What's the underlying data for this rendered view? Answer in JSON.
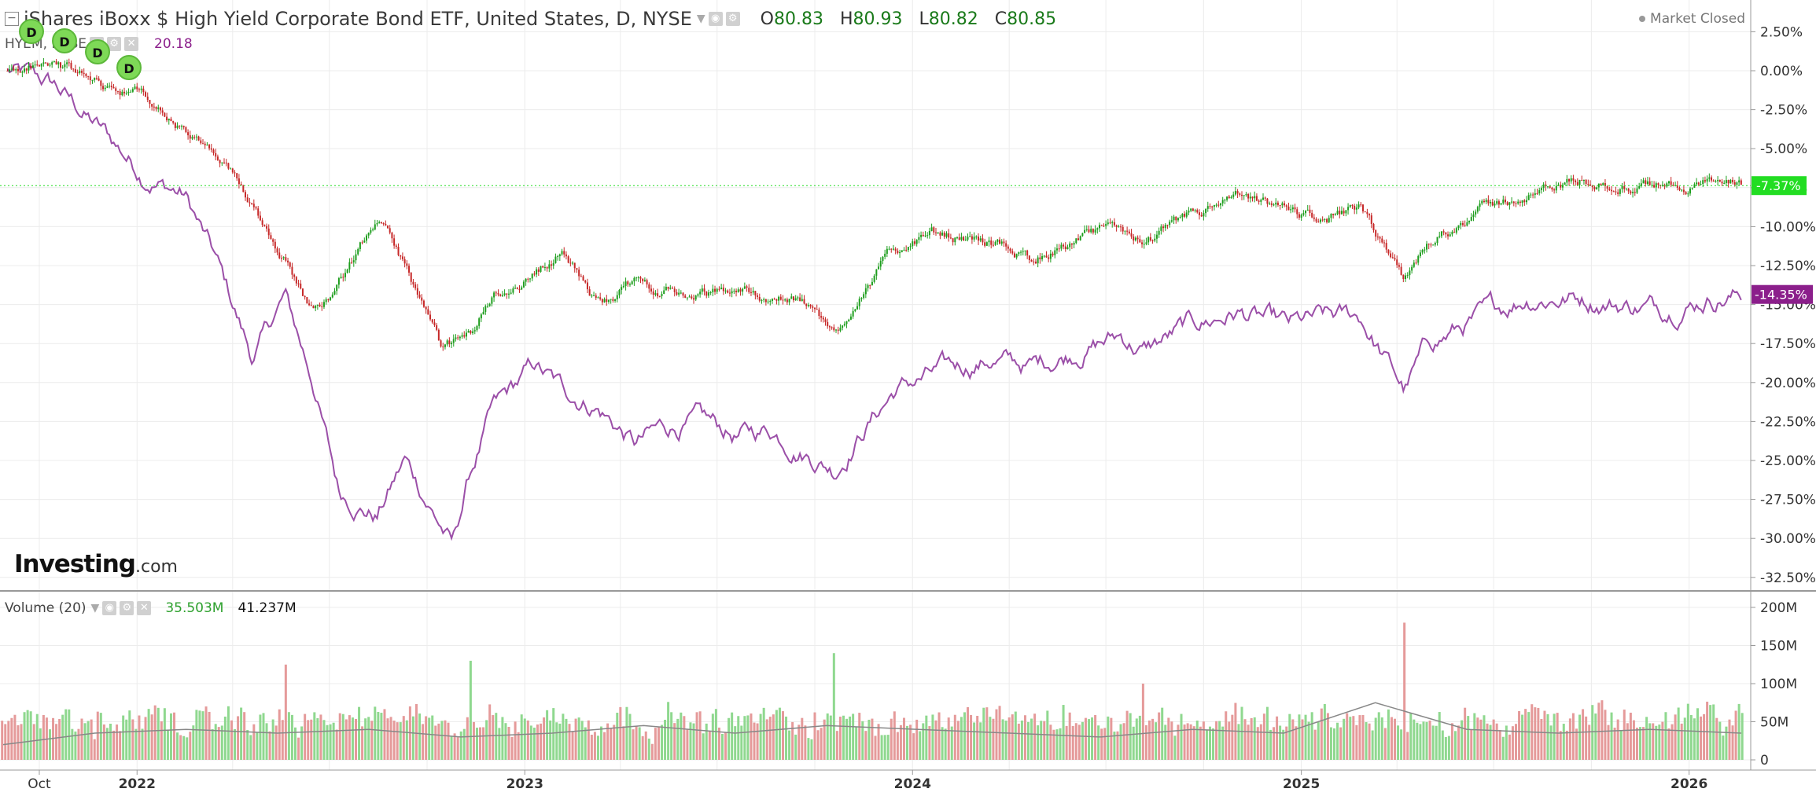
{
  "header": {
    "title": "iShares iBoxx $ High Yield Corporate Bond ETF, United States, D, NYSE",
    "ohlc": [
      {
        "k": "O",
        "v": "80.83"
      },
      {
        "k": "H",
        "v": "80.93"
      },
      {
        "k": "L",
        "v": "80.82"
      },
      {
        "k": "C",
        "v": "80.85"
      }
    ],
    "market_status": "Market Closed"
  },
  "compare": {
    "label": "HYEM, NYSE",
    "value": "20.18"
  },
  "volume_legend": {
    "label": "Volume (20)",
    "value1": "35.503M",
    "value2": "41.237M"
  },
  "logo": {
    "brand": "Investing",
    "domain": ".com"
  },
  "badges": [
    "D",
    "D",
    "D",
    "D"
  ],
  "colors": {
    "up": "#1e9e1e",
    "down": "#c62828",
    "compare": "#9b4fa8",
    "last_price_bg": "#22dd22",
    "compare_price_bg": "#8b1f8b",
    "vol_up": "#8fd88f",
    "vol_down": "#e59a9a",
    "grid": "#ececec"
  },
  "chart_data": [
    {
      "type": "line",
      "name": "price-comparison",
      "x_ticks": [
        "Oct",
        "2022",
        "2023",
        "2024",
        "2025",
        "2026"
      ],
      "y_ticks": [
        "2.50%",
        "0.00%",
        "-2.50%",
        "-5.00%",
        "-7.50%",
        "-10.00%",
        "-12.50%",
        "-15.00%",
        "-17.50%",
        "-20.00%",
        "-22.50%",
        "-25.00%",
        "-27.50%",
        "-30.00%",
        "-32.50%"
      ],
      "ylim": [
        -33.5,
        3.5
      ],
      "last_labels": {
        "main": "-7.37%",
        "compare": "-14.35%"
      },
      "series": [
        {
          "name": "iShares iBoxx $ High Yield Corporate Bond ETF",
          "x": [
            "2021-09-01",
            "2021-10-15",
            "2021-12-01",
            "2022-01-05",
            "2022-02-15",
            "2022-03-15",
            "2022-04-20",
            "2022-05-20",
            "2022-06-16",
            "2022-07-10",
            "2022-08-15",
            "2022-09-10",
            "2022-10-15",
            "2022-11-10",
            "2022-12-01",
            "2023-01-10",
            "2023-02-05",
            "2023-03-10",
            "2023-04-15",
            "2023-05-10",
            "2023-06-15",
            "2023-07-20",
            "2023-08-20",
            "2023-09-25",
            "2023-10-20",
            "2023-11-15",
            "2023-12-15",
            "2024-01-20",
            "2024-03-15",
            "2024-04-20",
            "2024-06-01",
            "2024-07-15",
            "2024-08-05",
            "2024-09-15",
            "2024-11-01",
            "2024-12-20",
            "2025-01-20",
            "2025-02-25",
            "2025-04-08",
            "2025-05-01",
            "2025-06-15",
            "2025-08-01",
            "2025-09-20",
            "2025-11-01",
            "2025-12-10",
            "2026-01-20",
            "2026-02-20"
          ],
          "values": [
            0.0,
            0.5,
            -1.0,
            -1.5,
            -4.0,
            -5.5,
            -8.5,
            -12.0,
            -15.5,
            -13.5,
            -9.5,
            -12.5,
            -18.0,
            -17.0,
            -14.5,
            -13.0,
            -11.5,
            -15.0,
            -13.5,
            -14.0,
            -14.5,
            -14.0,
            -14.5,
            -15.0,
            -17.0,
            -14.0,
            -11.5,
            -10.5,
            -11.0,
            -12.0,
            -11.0,
            -10.0,
            -11.0,
            -9.5,
            -8.2,
            -9.0,
            -9.5,
            -9.0,
            -13.5,
            -11.0,
            -9.0,
            -8.0,
            -7.0,
            -7.5,
            -7.3,
            -7.2,
            -7.37
          ]
        },
        {
          "name": "HYEM",
          "x": [
            "2021-09-01",
            "2021-10-15",
            "2021-12-01",
            "2022-01-05",
            "2022-02-15",
            "2022-03-15",
            "2022-04-20",
            "2022-05-20",
            "2022-06-16",
            "2022-07-10",
            "2022-08-15",
            "2022-09-10",
            "2022-10-25",
            "2022-11-10",
            "2022-12-01",
            "2023-01-10",
            "2023-02-05",
            "2023-03-10",
            "2023-04-15",
            "2023-05-10",
            "2023-06-15",
            "2023-07-20",
            "2023-08-20",
            "2023-09-25",
            "2023-10-20",
            "2023-11-15",
            "2023-12-15",
            "2024-01-20",
            "2024-03-15",
            "2024-04-20",
            "2024-06-01",
            "2024-07-15",
            "2024-08-05",
            "2024-09-15",
            "2024-11-01",
            "2024-12-20",
            "2025-01-20",
            "2025-02-25",
            "2025-04-08",
            "2025-05-01",
            "2025-06-15",
            "2025-08-01",
            "2025-09-20",
            "2025-11-01",
            "2025-12-10",
            "2026-01-20",
            "2026-02-20"
          ],
          "values": [
            0.0,
            -1.0,
            -4.0,
            -6.5,
            -8.0,
            -12.0,
            -18.5,
            -14.5,
            -20.0,
            -27.0,
            -28.5,
            -25.0,
            -30.5,
            -26.0,
            -22.0,
            -19.0,
            -20.5,
            -21.5,
            -24.0,
            -23.0,
            -22.5,
            -23.5,
            -23.0,
            -24.5,
            -25.5,
            -23.0,
            -20.5,
            -19.5,
            -18.5,
            -19.0,
            -18.0,
            -17.0,
            -18.0,
            -16.5,
            -15.5,
            -16.5,
            -16.0,
            -15.8,
            -20.5,
            -17.5,
            -16.0,
            -14.5,
            -14.5,
            -15.0,
            -15.2,
            -14.5,
            -14.35
          ]
        }
      ]
    },
    {
      "type": "bar",
      "name": "volume",
      "y_ticks": [
        "200M",
        "150M",
        "100M",
        "50M",
        "0"
      ],
      "ylim": [
        0,
        200
      ],
      "spikes": [
        {
          "x": "2022-05-20",
          "value": 125
        },
        {
          "x": "2022-11-10",
          "value": 130
        },
        {
          "x": "2023-10-20",
          "value": 140
        },
        {
          "x": "2024-08-05",
          "value": 100
        },
        {
          "x": "2025-04-08",
          "value": 195
        },
        {
          "x": "2025-04-09",
          "value": 180
        }
      ],
      "ma_values": [
        20,
        35,
        40,
        35,
        40,
        30,
        35,
        45,
        35,
        45,
        40,
        35,
        30,
        40,
        35,
        75,
        40,
        35,
        40,
        35
      ]
    }
  ]
}
